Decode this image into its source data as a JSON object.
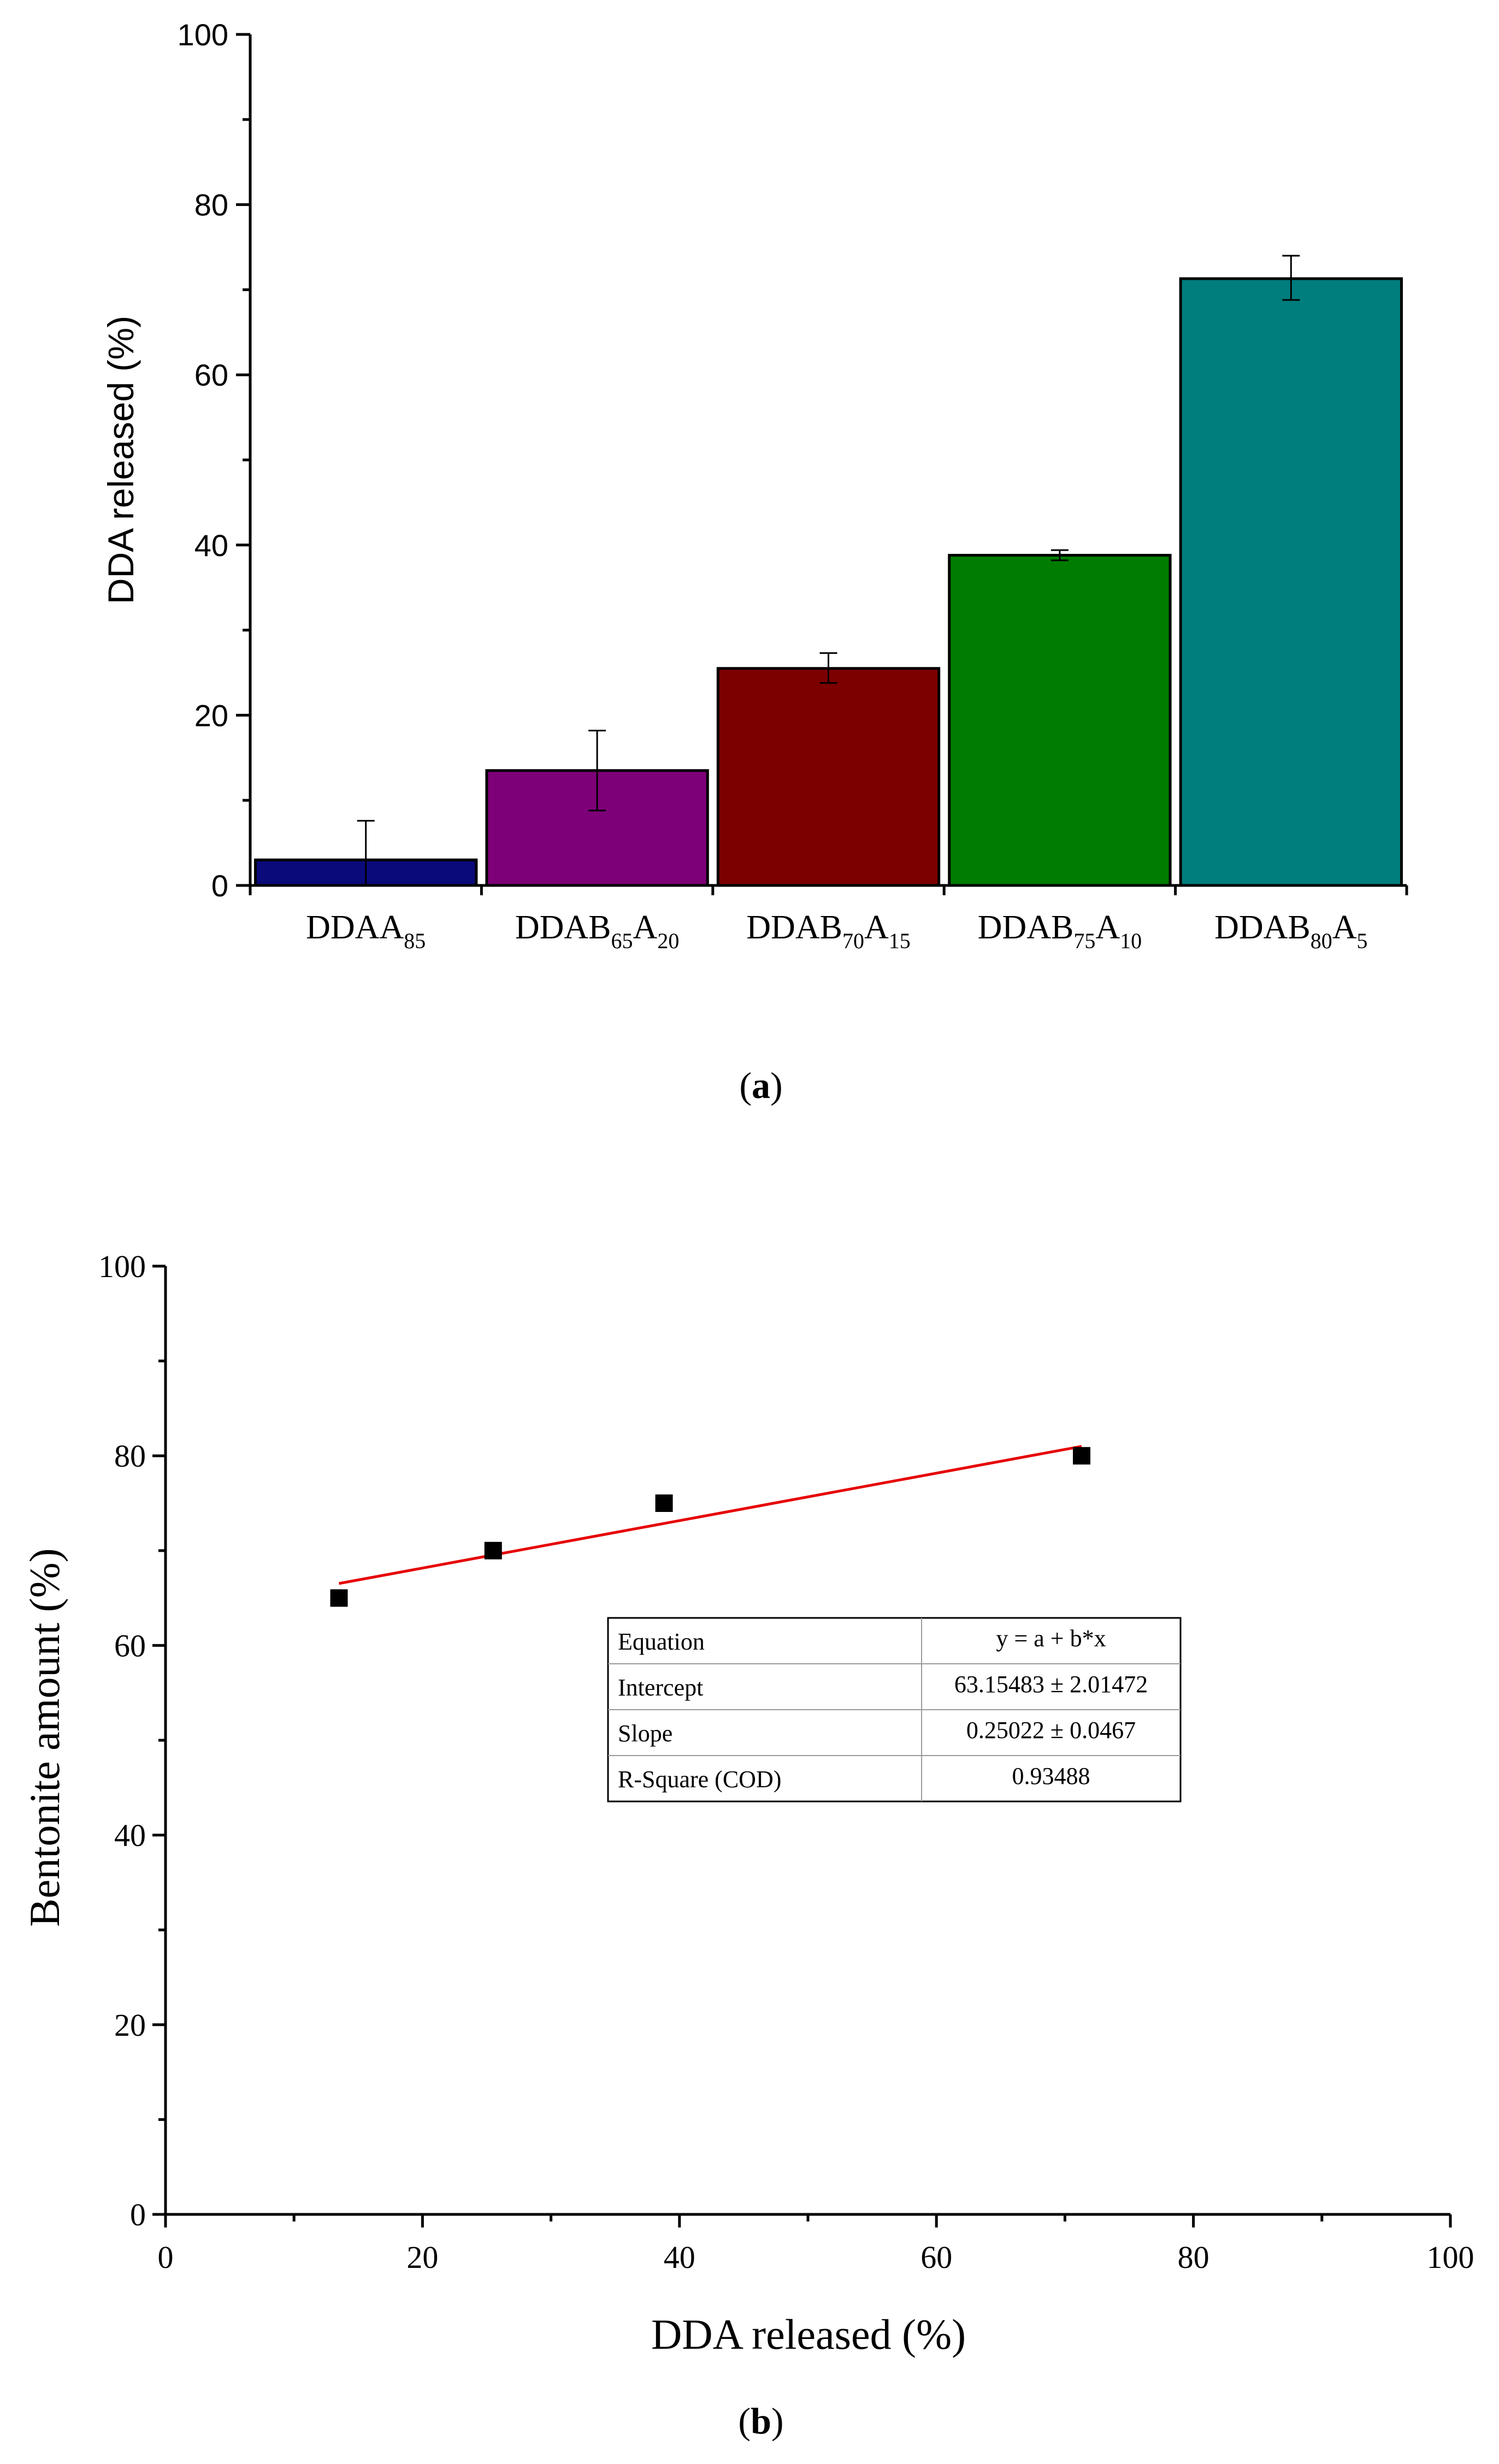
{
  "chart_data": [
    {
      "panel_label": "a",
      "type": "bar",
      "categories": [
        {
          "base": "DDAA",
          "sub1": "85",
          "mid": "",
          "sub2": ""
        },
        {
          "base": "DDAB",
          "sub1": "65",
          "mid": "A",
          "sub2": "20"
        },
        {
          "base": "DDAB",
          "sub1": "70",
          "mid": "A",
          "sub2": "15"
        },
        {
          "base": "DDAB",
          "sub1": "75",
          "mid": "A",
          "sub2": "10"
        },
        {
          "base": "DDAB",
          "sub1": "80",
          "mid": "A",
          "sub2": "5"
        }
      ],
      "values": [
        3.0,
        13.5,
        25.5,
        38.8,
        71.3
      ],
      "error_low": [
        0.0,
        8.8,
        23.8,
        38.2,
        68.8
      ],
      "error_high": [
        7.6,
        18.2,
        27.3,
        39.4,
        74.0
      ],
      "colors": [
        "#0a0a7a",
        "#7e0078",
        "#7d0000",
        "#007d00",
        "#007d7d"
      ],
      "xlabel": "",
      "ylabel": "DDA released (%)",
      "ylim": [
        0,
        100
      ],
      "yticks": [
        "0",
        "20",
        "40",
        "60",
        "80",
        "100"
      ],
      "grid": false
    },
    {
      "panel_label": "b",
      "type": "scatter",
      "x": [
        13.5,
        25.5,
        38.8,
        71.3
      ],
      "y": [
        65,
        70,
        75,
        80
      ],
      "fit_line": {
        "intercept": 63.15483,
        "slope": 0.25022,
        "x_range": [
          13.5,
          71.3
        ],
        "color": "#e60000"
      },
      "marker_color": "#000000",
      "xlabel": "DDA released (%)",
      "ylabel": "Bentonite amount (%)",
      "xlim": [
        0,
        100
      ],
      "ylim": [
        0,
        100
      ],
      "xticks": [
        "0",
        "20",
        "40",
        "60",
        "80",
        "100"
      ],
      "yticks": [
        "0",
        "20",
        "40",
        "60",
        "80",
        "100"
      ],
      "grid": false,
      "legend_placement": "center-right",
      "stats_table": [
        {
          "label": "Equation",
          "value": "y = a + b*x"
        },
        {
          "label": "Intercept",
          "value": "63.15483 ± 2.01472"
        },
        {
          "label": "Slope",
          "value": "0.25022 ± 0.0467"
        },
        {
          "label": "R-Square (COD)",
          "value": "0.93488"
        }
      ]
    }
  ]
}
